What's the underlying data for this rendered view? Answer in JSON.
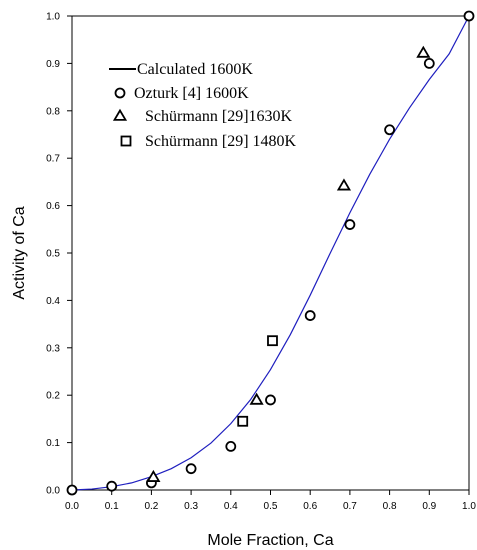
{
  "chart_data": {
    "type": "scatter",
    "title": "",
    "xlabel": "Mole Fraction, Ca",
    "ylabel": "Activity of Ca",
    "xlim": [
      0.0,
      1.0
    ],
    "ylim": [
      0.0,
      1.0
    ],
    "x_ticks": [
      "0.0",
      "0.1",
      "0.2",
      "0.3",
      "0.4",
      "0.5",
      "0.6",
      "0.7",
      "0.8",
      "0.9",
      "1.0"
    ],
    "y_ticks": [
      "0.0",
      "0.1",
      "0.2",
      "0.3",
      "0.4",
      "0.5",
      "0.6",
      "0.7",
      "0.8",
      "0.9",
      "1.0"
    ],
    "grid": false,
    "legend_position": "top-left",
    "series": [
      {
        "name": "Calculated 1600K",
        "marker": "line",
        "color": "#1f1fbf",
        "x": [
          0.0,
          0.05,
          0.1,
          0.15,
          0.2,
          0.25,
          0.3,
          0.35,
          0.4,
          0.45,
          0.5,
          0.55,
          0.6,
          0.65,
          0.7,
          0.75,
          0.8,
          0.85,
          0.9,
          0.95,
          1.0
        ],
        "y": [
          0.0,
          0.002,
          0.007,
          0.015,
          0.028,
          0.045,
          0.068,
          0.099,
          0.14,
          0.191,
          0.254,
          0.328,
          0.411,
          0.499,
          0.585,
          0.666,
          0.74,
          0.806,
          0.866,
          0.92,
          1.0
        ]
      },
      {
        "name": "Ozturk [4] 1600K",
        "marker": "circle",
        "color": "#000000",
        "x": [
          0.0,
          0.1,
          0.2,
          0.3,
          0.4,
          0.5,
          0.6,
          0.7,
          0.8,
          0.9,
          1.0
        ],
        "y": [
          0.0,
          0.008,
          0.015,
          0.045,
          0.092,
          0.19,
          0.368,
          0.56,
          0.76,
          0.9,
          1.0
        ]
      },
      {
        "name": "Schürmann [29]1630K",
        "marker": "triangle",
        "color": "#000000",
        "x": [
          0.205,
          0.465,
          0.685,
          0.885
        ],
        "y": [
          0.027,
          0.19,
          0.642,
          0.922
        ]
      },
      {
        "name": "Schürmann [29] 1480K",
        "marker": "square",
        "color": "#000000",
        "x": [
          0.43,
          0.505
        ],
        "y": [
          0.145,
          0.315
        ]
      }
    ]
  }
}
